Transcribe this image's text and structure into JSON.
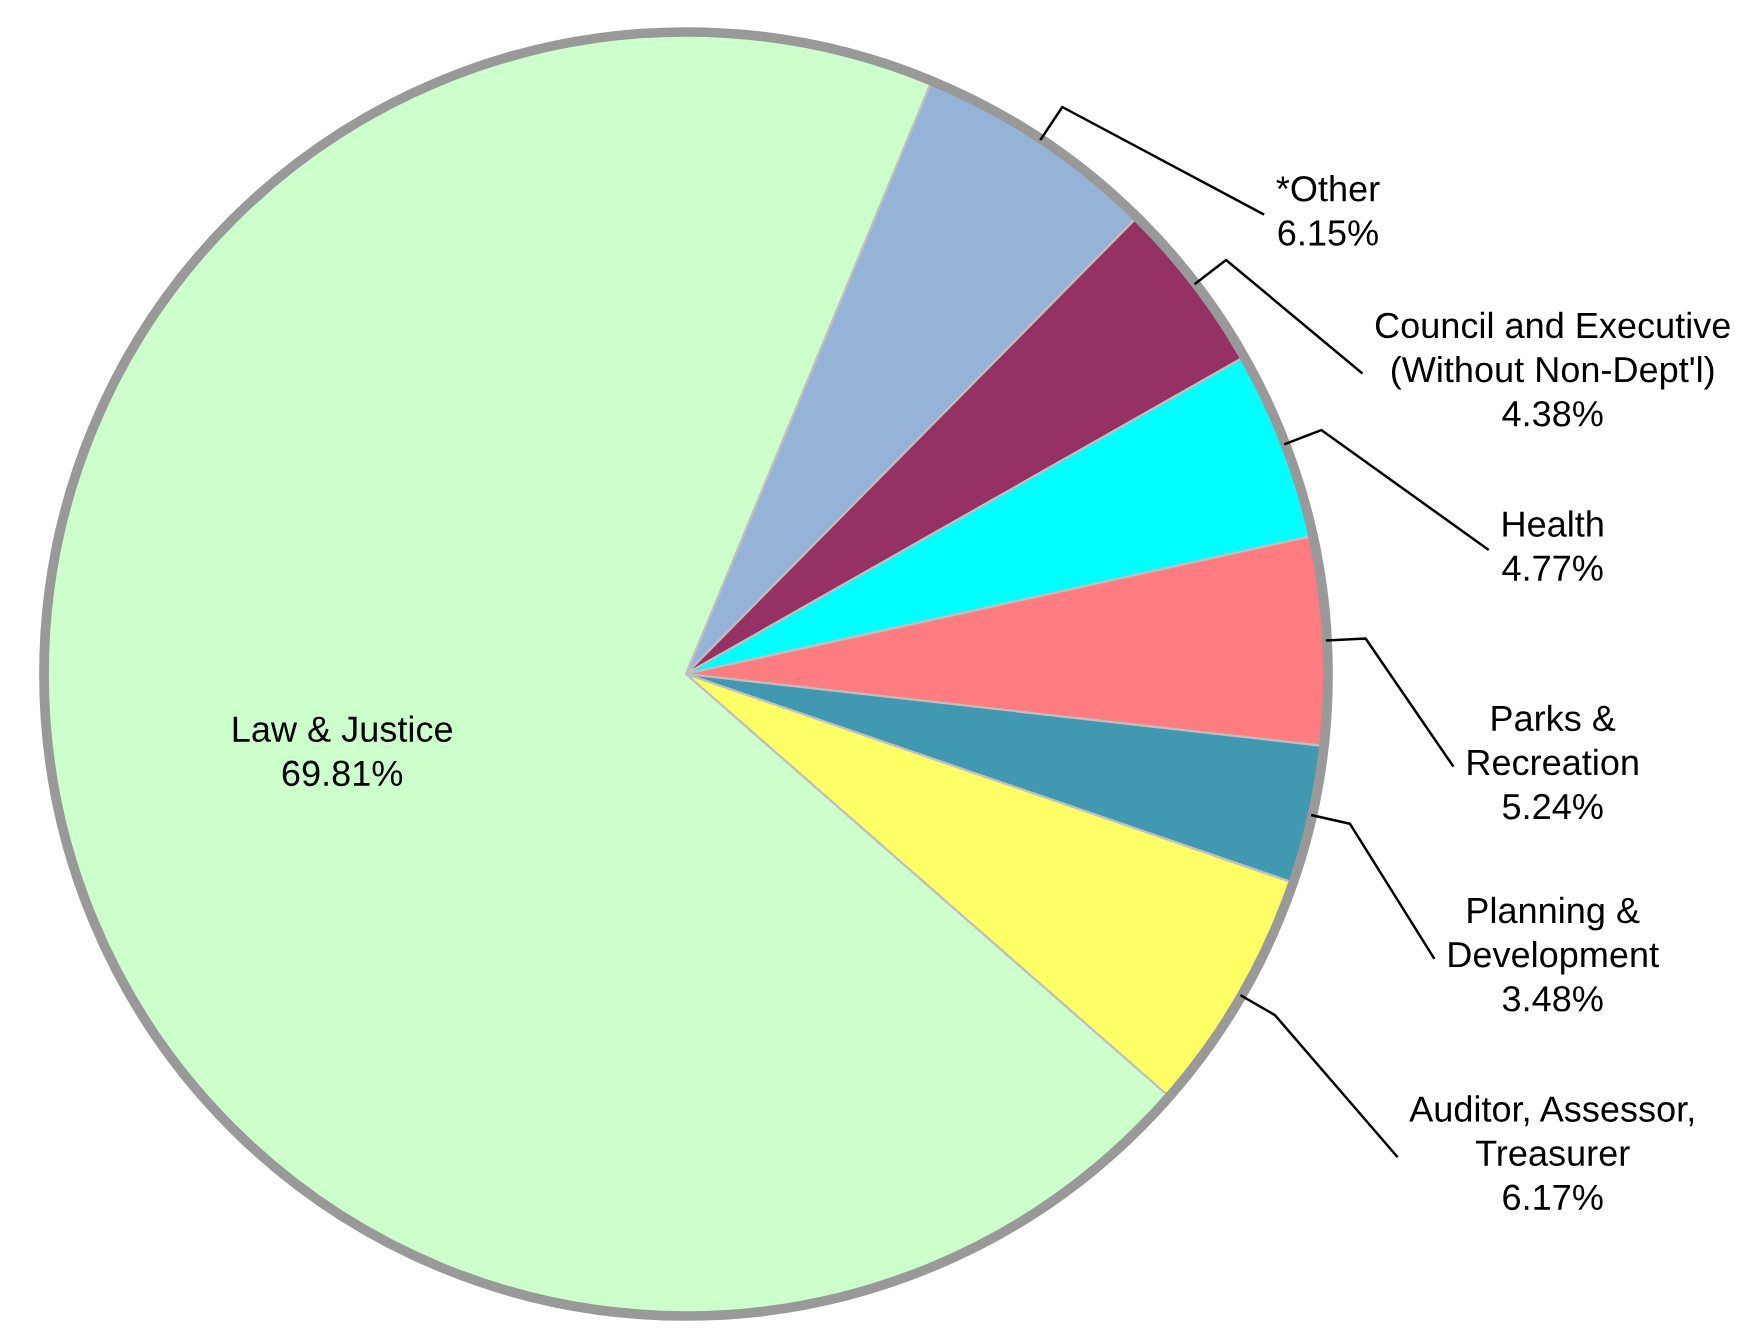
{
  "chart_data": {
    "type": "pie",
    "categories": [
      "*Other",
      "Council and Executive\n(Without Non-Dept'l)",
      "Health",
      "Parks &\nRecreation",
      "Planning &\nDevelopment",
      "Auditor, Assessor,\nTreasurer",
      "Law & Justice"
    ],
    "values": [
      6.15,
      4.38,
      4.77,
      5.24,
      3.48,
      6.17,
      69.81
    ],
    "value_labels": [
      "6.15%",
      "4.38%",
      "4.77%",
      "5.24%",
      "3.48%",
      "6.17%",
      "69.81%"
    ],
    "colors": [
      "#95b3d7",
      "#953163",
      "#00ffff",
      "#ff7c80",
      "#4198b1",
      "#ffff66",
      "#ccffcc"
    ]
  }
}
